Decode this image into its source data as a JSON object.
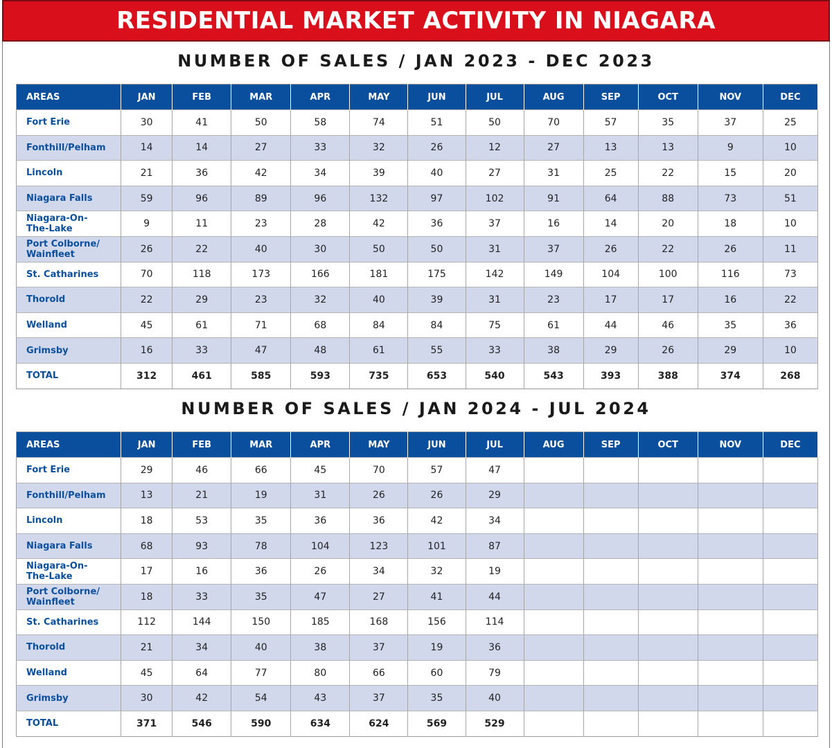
{
  "title": "RESIDENTIAL MARKET ACTIVITY IN NIAGARA",
  "tables": [
    {
      "subtitle": "NUMBER OF SALES / JAN 2023 - DEC 2023",
      "header": [
        "AREAS",
        "JAN",
        "FEB",
        "MAR",
        "APR",
        "MAY",
        "JUN",
        "JUL",
        "AUG",
        "SEP",
        "OCT",
        "NOV",
        "DEC"
      ],
      "rows": [
        [
          "Fort Erie",
          "30",
          "41",
          "50",
          "58",
          "74",
          "51",
          "50",
          "70",
          "57",
          "35",
          "37",
          "25"
        ],
        [
          "Fonthill/Pelham",
          "14",
          "14",
          "27",
          "33",
          "32",
          "26",
          "12",
          "27",
          "13",
          "13",
          "9",
          "10"
        ],
        [
          "Lincoln",
          "21",
          "36",
          "42",
          "34",
          "39",
          "40",
          "27",
          "31",
          "25",
          "22",
          "15",
          "20"
        ],
        [
          "Niagara Falls",
          "59",
          "96",
          "89",
          "96",
          "132",
          "97",
          "102",
          "91",
          "64",
          "88",
          "73",
          "51"
        ],
        [
          "Niagara-On-\nThe-Lake",
          "9",
          "11",
          "23",
          "28",
          "42",
          "36",
          "37",
          "16",
          "14",
          "20",
          "18",
          "10"
        ],
        [
          "Port Colborne/\nWainfleet",
          "26",
          "22",
          "40",
          "30",
          "50",
          "50",
          "31",
          "37",
          "26",
          "22",
          "26",
          "11"
        ],
        [
          "St. Catharines",
          "70",
          "118",
          "173",
          "166",
          "181",
          "175",
          "142",
          "149",
          "104",
          "100",
          "116",
          "73"
        ],
        [
          "Thorold",
          "22",
          "29",
          "23",
          "32",
          "40",
          "39",
          "31",
          "23",
          "17",
          "17",
          "16",
          "22"
        ],
        [
          "Welland",
          "45",
          "61",
          "71",
          "68",
          "84",
          "84",
          "75",
          "61",
          "44",
          "46",
          "35",
          "36"
        ],
        [
          "Grimsby",
          "16",
          "33",
          "47",
          "48",
          "61",
          "55",
          "33",
          "38",
          "29",
          "26",
          "29",
          "10"
        ],
        [
          "TOTAL",
          "312",
          "461",
          "585",
          "593",
          "735",
          "653",
          "540",
          "543",
          "393",
          "388",
          "374",
          "268"
        ]
      ]
    },
    {
      "subtitle": "NUMBER OF SALES / JAN 2024 - JUL 2024",
      "header": [
        "AREAS",
        "JAN",
        "FEB",
        "MAR",
        "APR",
        "MAY",
        "JUN",
        "JUL",
        "AUG",
        "SEP",
        "OCT",
        "NOV",
        "DEC"
      ],
      "rows": [
        [
          "Fort Erie",
          "29",
          "46",
          "66",
          "45",
          "70",
          "57",
          "47",
          "",
          "",
          "",
          "",
          ""
        ],
        [
          "Fonthill/Pelham",
          "13",
          "21",
          "19",
          "31",
          "26",
          "26",
          "29",
          "",
          "",
          "",
          "",
          ""
        ],
        [
          "Lincoln",
          "18",
          "53",
          "35",
          "36",
          "36",
          "42",
          "34",
          "",
          "",
          "",
          "",
          ""
        ],
        [
          "Niagara Falls",
          "68",
          "93",
          "78",
          "104",
          "123",
          "101",
          "87",
          "",
          "",
          "",
          "",
          ""
        ],
        [
          "Niagara-On-\nThe-Lake",
          "17",
          "16",
          "36",
          "26",
          "34",
          "32",
          "19",
          "",
          "",
          "",
          "",
          ""
        ],
        [
          "Port Colborne/\nWainfleet",
          "18",
          "33",
          "35",
          "47",
          "27",
          "41",
          "44",
          "",
          "",
          "",
          "",
          ""
        ],
        [
          "St. Catharines",
          "112",
          "144",
          "150",
          "185",
          "168",
          "156",
          "114",
          "",
          "",
          "",
          "",
          ""
        ],
        [
          "Thorold",
          "21",
          "34",
          "40",
          "38",
          "37",
          "19",
          "36",
          "",
          "",
          "",
          "",
          ""
        ],
        [
          "Welland",
          "45",
          "64",
          "77",
          "80",
          "66",
          "60",
          "79",
          "",
          "",
          "",
          "",
          ""
        ],
        [
          "Grimsby",
          "30",
          "42",
          "54",
          "43",
          "37",
          "35",
          "40",
          "",
          "",
          "",
          "",
          ""
        ],
        [
          "TOTAL",
          "371",
          "546",
          "590",
          "634",
          "624",
          "569",
          "529",
          "",
          "",
          "",
          "",
          ""
        ]
      ]
    }
  ]
}
